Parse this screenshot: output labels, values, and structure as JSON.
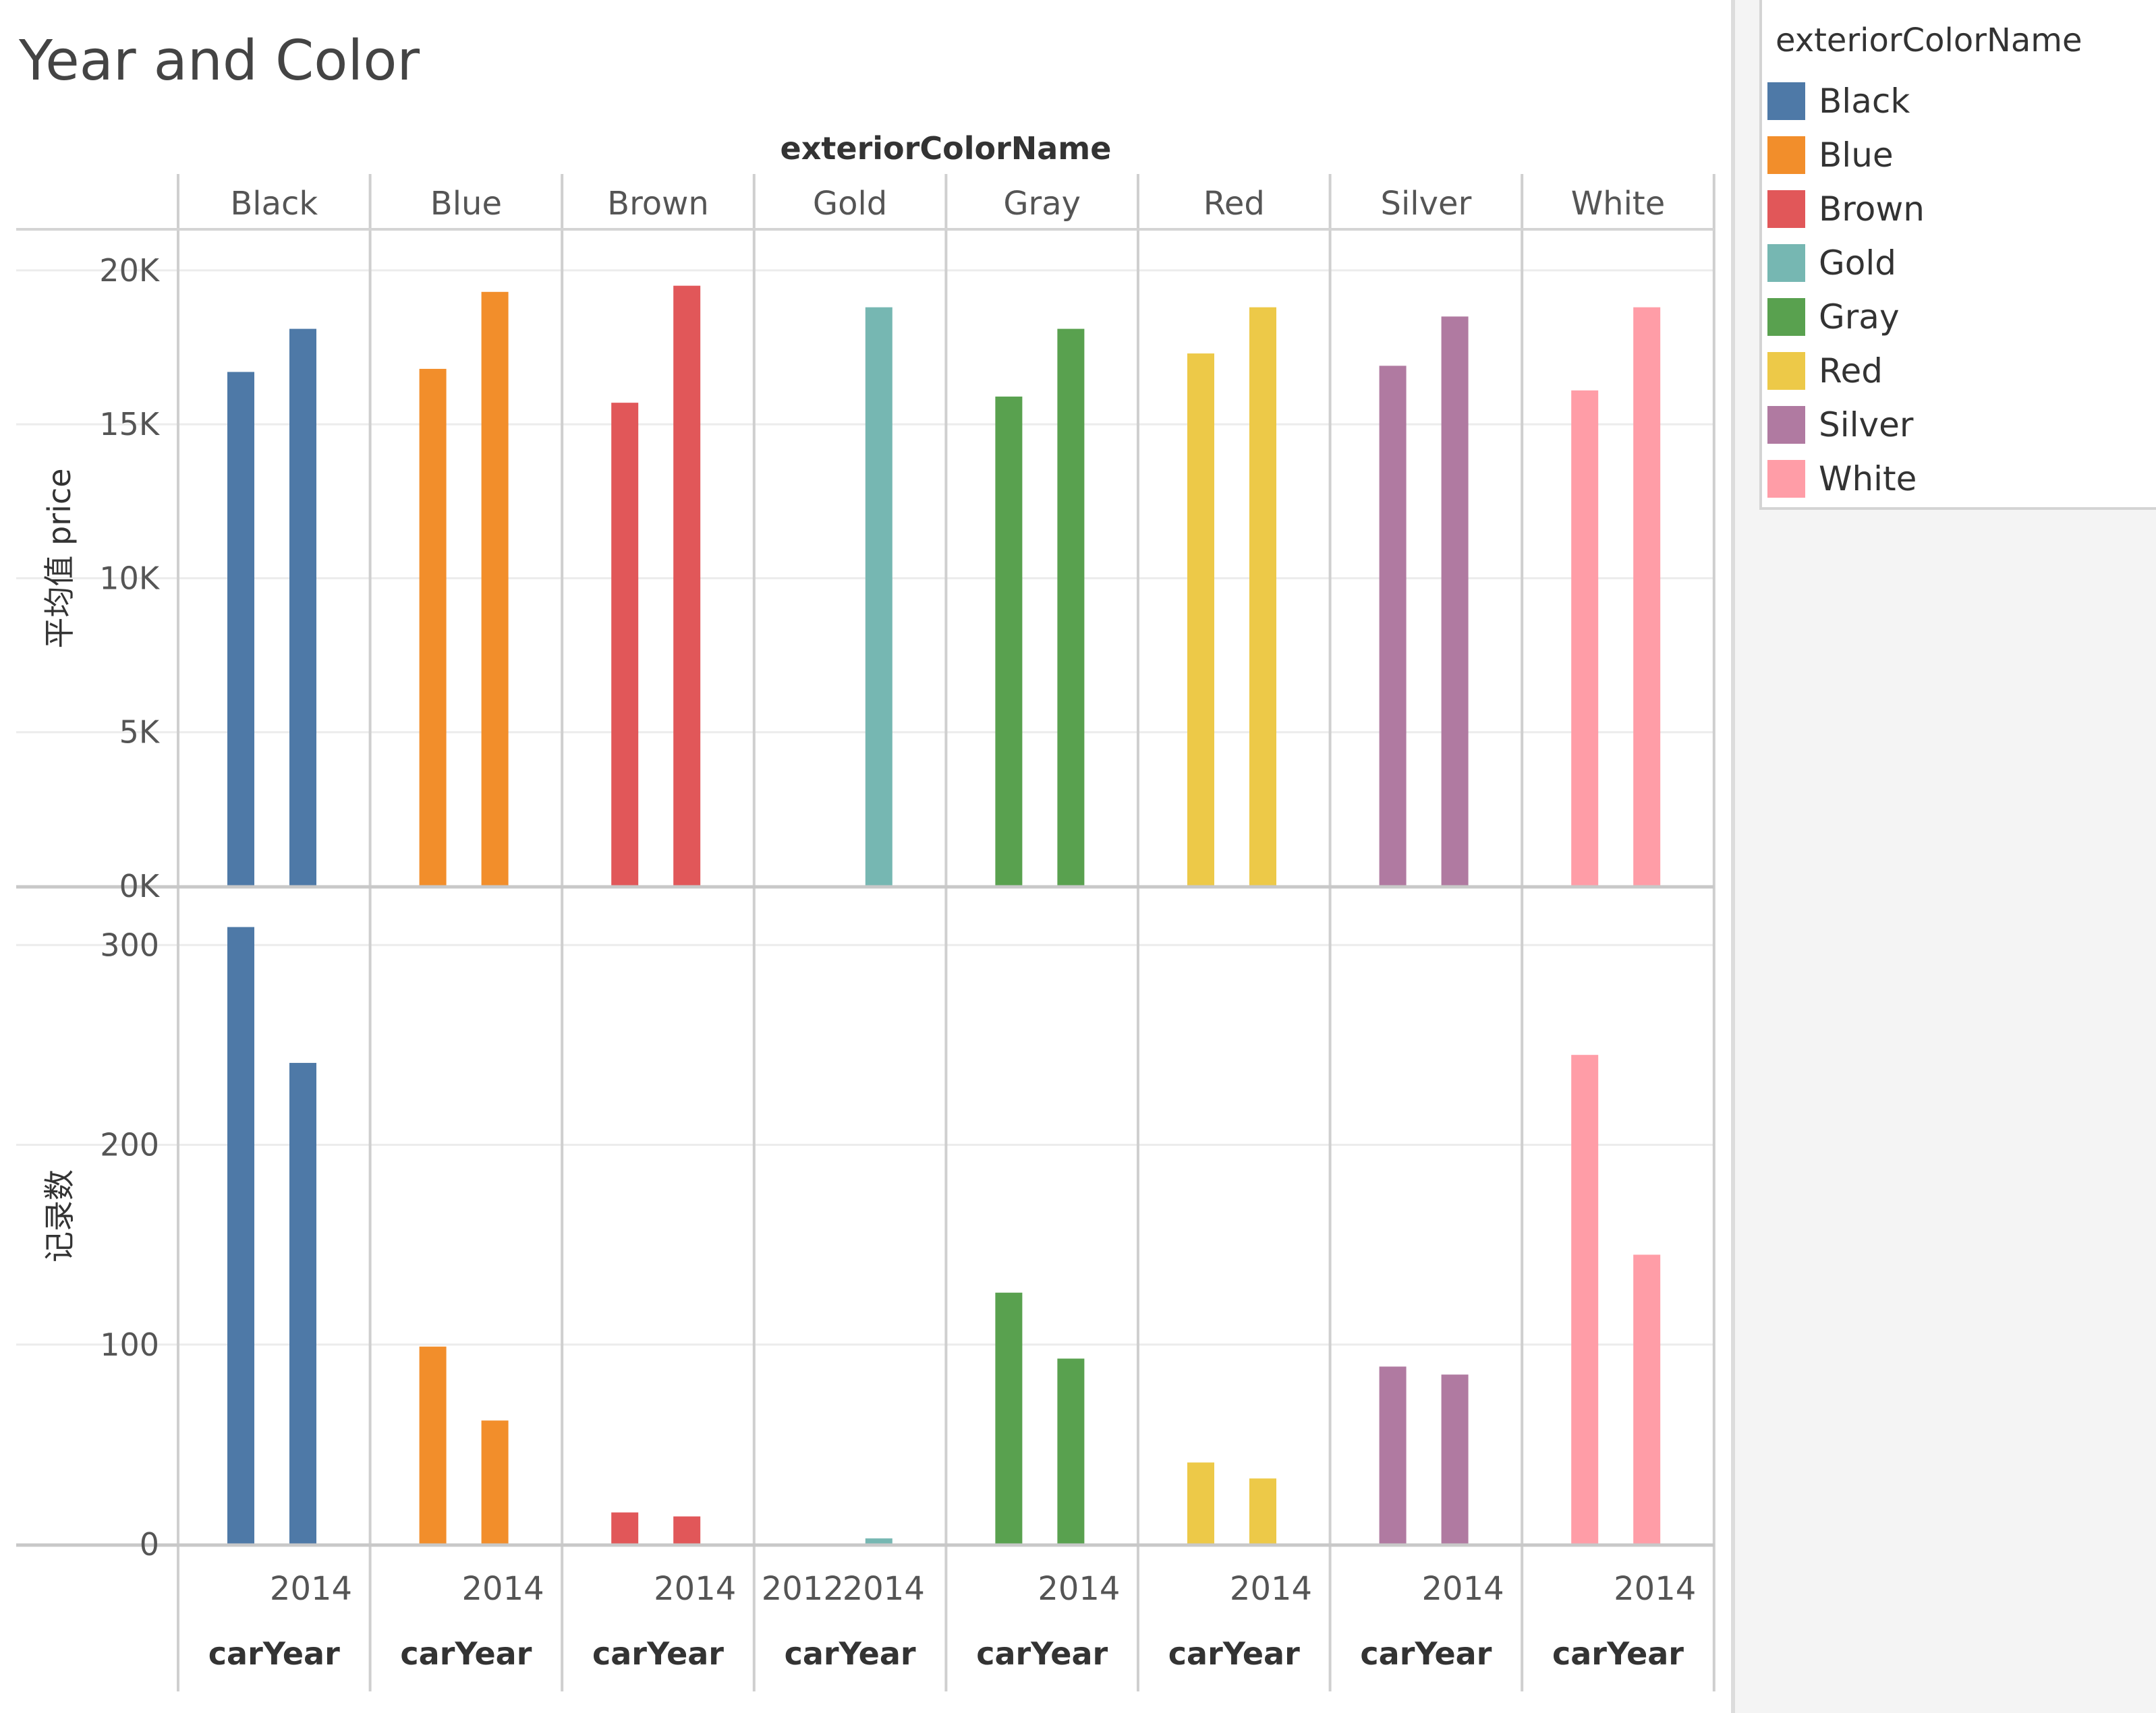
{
  "chart_data": {
    "type": "bar",
    "title": "Year and Color",
    "column_header": "exteriorColorName",
    "panels": [
      "Black",
      "Blue",
      "Brown",
      "Gold",
      "Gray",
      "Red",
      "Silver",
      "White"
    ],
    "colors": [
      "#4e79a7",
      "#f28e2b",
      "#e15759",
      "#76b7b2",
      "#59a14f",
      "#edc948",
      "#b07aa1",
      "#ff9da7"
    ],
    "x_field": "carYear",
    "x_tick_labels": [
      [
        "2014"
      ],
      [
        "2014"
      ],
      [
        "2014"
      ],
      [
        "2012",
        "2014"
      ],
      [
        "2014"
      ],
      [
        "2014"
      ],
      [
        "2014"
      ],
      [
        "2014"
      ]
    ],
    "rows": [
      {
        "ylabel": "平均值 price",
        "ylim": [
          0,
          20500
        ],
        "ticks": [
          0,
          5000,
          10000,
          15000,
          20000
        ],
        "tick_labels": [
          "0K",
          "5K",
          "10K",
          "15K",
          "20K"
        ],
        "values": [
          [
            16700,
            18100
          ],
          [
            16800,
            19300
          ],
          [
            15700,
            19500
          ],
          [
            null,
            18800
          ],
          [
            15900,
            18100
          ],
          [
            17300,
            18800
          ],
          [
            16900,
            18500
          ],
          [
            16100,
            18800
          ]
        ]
      },
      {
        "ylabel": "记录数",
        "ylim": [
          0,
          320
        ],
        "ticks": [
          0,
          100,
          200,
          300
        ],
        "tick_labels": [
          "0",
          "100",
          "200",
          "300"
        ],
        "values": [
          [
            309,
            241
          ],
          [
            99,
            62
          ],
          [
            16,
            14
          ],
          [
            0,
            3
          ],
          [
            126,
            93
          ],
          [
            41,
            33
          ],
          [
            89,
            85
          ],
          [
            245,
            145
          ]
        ]
      }
    ],
    "legend": {
      "title": "exteriorColorName",
      "position": "right",
      "items": [
        "Black",
        "Blue",
        "Brown",
        "Gold",
        "Gray",
        "Red",
        "Silver",
        "White"
      ]
    }
  }
}
